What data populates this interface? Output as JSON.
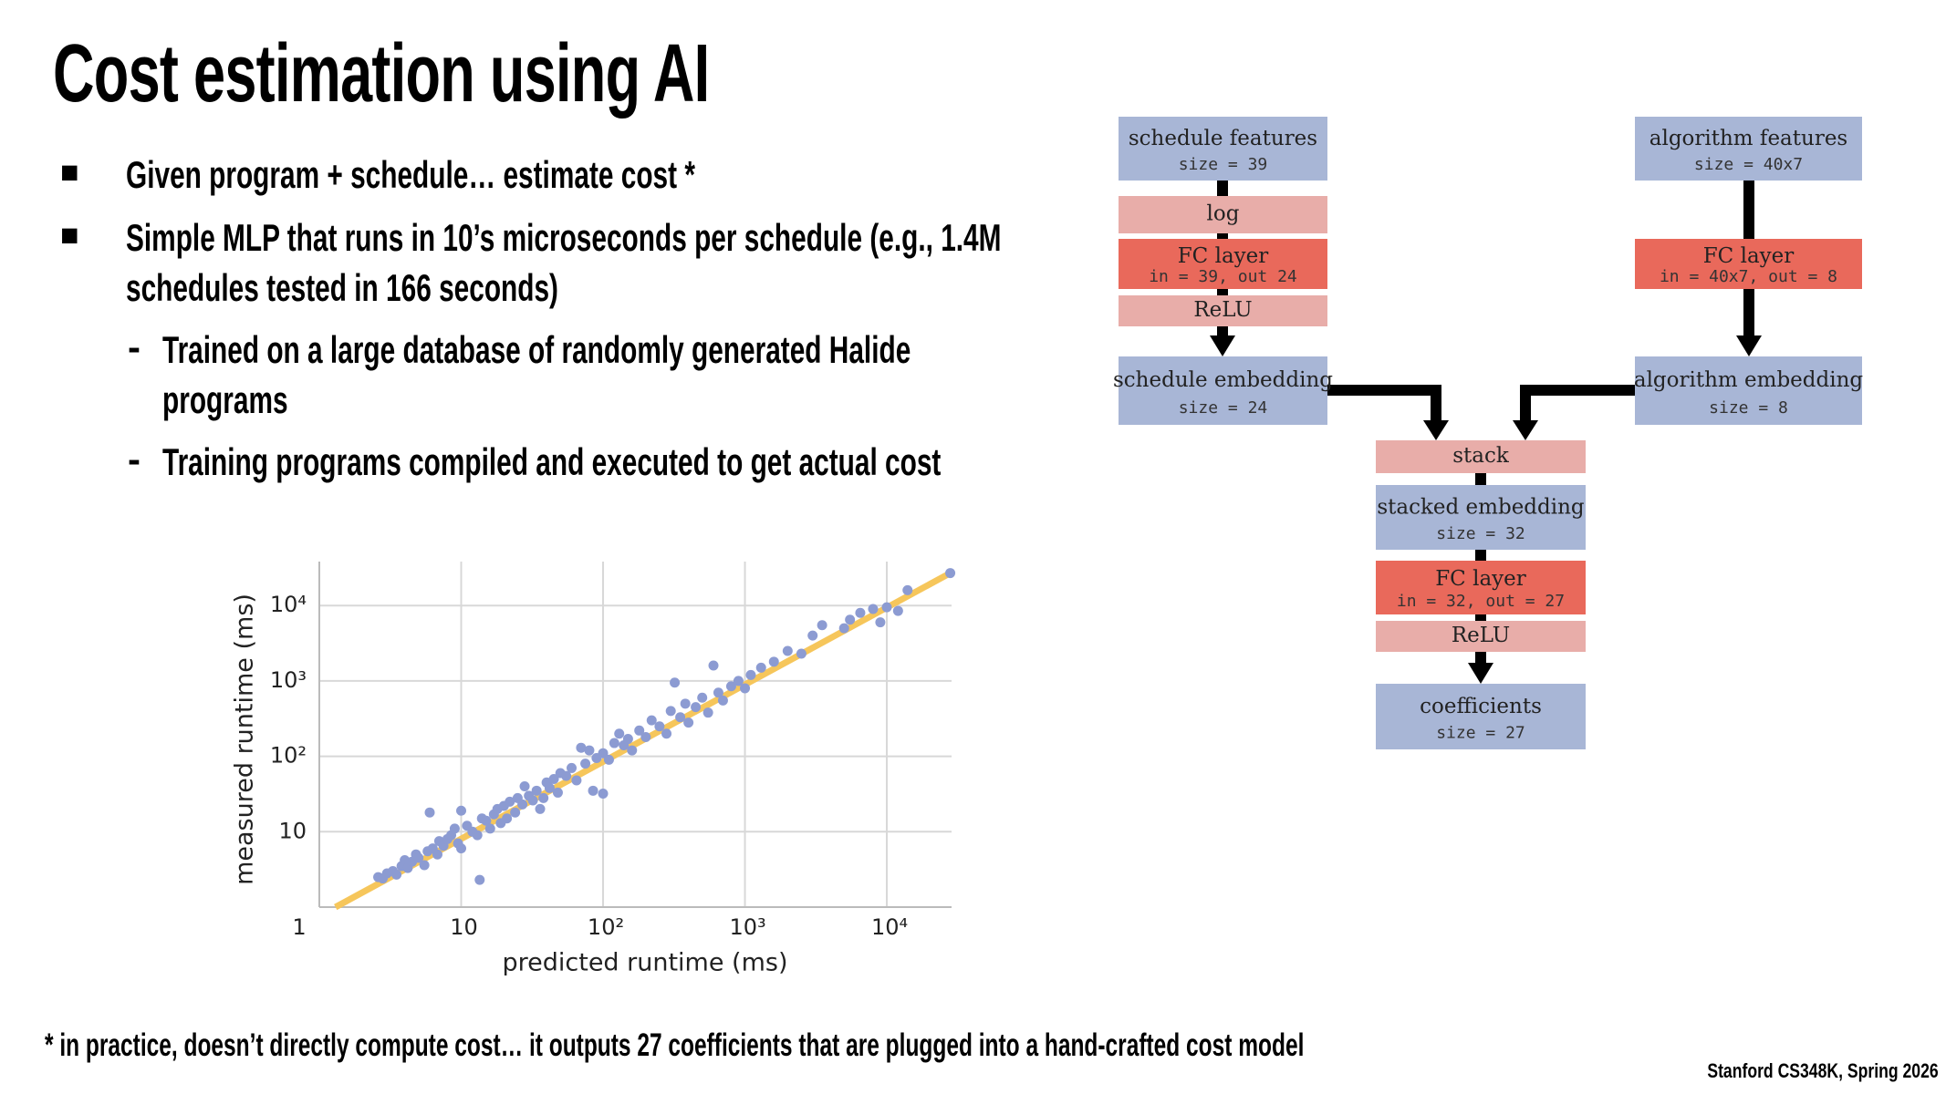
{
  "title": "Cost estimation using AI",
  "bullets": [
    "Given program + schedule… estimate cost *",
    "Simple MLP that runs in 10’s microseconds per schedule (e.g., 1.4M schedules tested in 166 seconds)"
  ],
  "sub_bullets": [
    "Trained on a large database of randomly generated Halide programs",
    "Training programs compiled and executed to get actual cost"
  ],
  "footnote": "* in practice, doesn’t directly compute cost… it outputs 27 coefficients that are plugged into a hand-crafted cost model",
  "credit": "Stanford CS348K, Spring 2026",
  "diagram": {
    "nodes": [
      {
        "label": "schedule features",
        "detail": "size = 39"
      },
      {
        "label": "log"
      },
      {
        "label": "FC layer",
        "detail": "in = 39, out 24"
      },
      {
        "label": "ReLU"
      },
      {
        "label": "schedule embedding",
        "detail": "size = 24"
      },
      {
        "label": "algorithm features",
        "detail": "size = 40x7"
      },
      {
        "label": "FC layer",
        "detail": "in = 40x7, out = 8"
      },
      {
        "label": "algorithm embedding",
        "detail": "size = 8"
      },
      {
        "label": "stack"
      },
      {
        "label": "stacked embedding",
        "detail": "size = 32"
      },
      {
        "label": "FC layer",
        "detail": "in = 32, out = 27"
      },
      {
        "label": "ReLU"
      },
      {
        "label": "coefficients",
        "detail": "size = 27"
      }
    ]
  },
  "chart_data": {
    "type": "scatter",
    "x_label": "predicted runtime (ms)",
    "y_label": "measured runtime (ms)",
    "log_x": true,
    "log_y": true,
    "grid": true,
    "xlim": [
      1,
      28600
    ],
    "ylim": [
      1,
      29000
    ],
    "xticks": [
      1,
      10,
      {
        "value": 100,
        "label": "10²"
      },
      {
        "value": 1000,
        "label": "10³"
      },
      {
        "value": 10000,
        "label": "10⁴"
      }
    ],
    "yticks": [
      10,
      {
        "value": 100,
        "label": "10²"
      },
      {
        "value": 1000,
        "label": "10³"
      },
      {
        "value": 10000,
        "label": "10⁴"
      }
    ],
    "series": [
      {
        "type": "scatter",
        "color": "#8c9bd2",
        "x": [
          2.6,
          2.8,
          3,
          3.3,
          3.5,
          3.8,
          4,
          4.2,
          4.5,
          4.8,
          5,
          5.5,
          5.8,
          6,
          6.3,
          6.8,
          7,
          7.5,
          8,
          8.5,
          9,
          9.5,
          10,
          10,
          11,
          12,
          13,
          13.5,
          14,
          15,
          16,
          17,
          18,
          19,
          20,
          21,
          22,
          24,
          25,
          27,
          28,
          30,
          32,
          34,
          36,
          38,
          40,
          42,
          45,
          48,
          50,
          55,
          60,
          65,
          70,
          75,
          80,
          85,
          90,
          100,
          100,
          110,
          120,
          130,
          140,
          150,
          160,
          180,
          200,
          220,
          250,
          280,
          300,
          320,
          350,
          380,
          400,
          450,
          500,
          550,
          600,
          650,
          700,
          800,
          900,
          1000,
          1100,
          1300,
          1600,
          2000,
          2500,
          3000,
          3500,
          5000,
          5500,
          6500,
          8000,
          9000,
          10000,
          12000,
          14000,
          28000
        ],
        "values": [
          2.5,
          2.4,
          2.8,
          3,
          2.7,
          3.5,
          4.2,
          3.3,
          4,
          5,
          4.5,
          3.6,
          5.5,
          18,
          6,
          5,
          7.5,
          6.5,
          8,
          9,
          11,
          7,
          19,
          6,
          12,
          10,
          9,
          2.3,
          15,
          14,
          11,
          17,
          20,
          13,
          22,
          15,
          25,
          18,
          28,
          23,
          40,
          30,
          26,
          35,
          20,
          28,
          45,
          38,
          50,
          33,
          60,
          55,
          70,
          48,
          130,
          80,
          120,
          35,
          95,
          32,
          110,
          90,
          150,
          200,
          140,
          170,
          120,
          220,
          180,
          300,
          250,
          200,
          400,
          950,
          330,
          500,
          280,
          450,
          600,
          380,
          1600,
          700,
          550,
          850,
          1000,
          800,
          1200,
          1500,
          1800,
          2500,
          2300,
          4000,
          5500,
          5000,
          6500,
          8000,
          9000,
          6000,
          9500,
          8500,
          16000,
          27000
        ]
      },
      {
        "type": "line",
        "color": "#f6c65b",
        "x": [
          1.3,
          27000
        ],
        "values": [
          1,
          26000
        ]
      }
    ]
  }
}
